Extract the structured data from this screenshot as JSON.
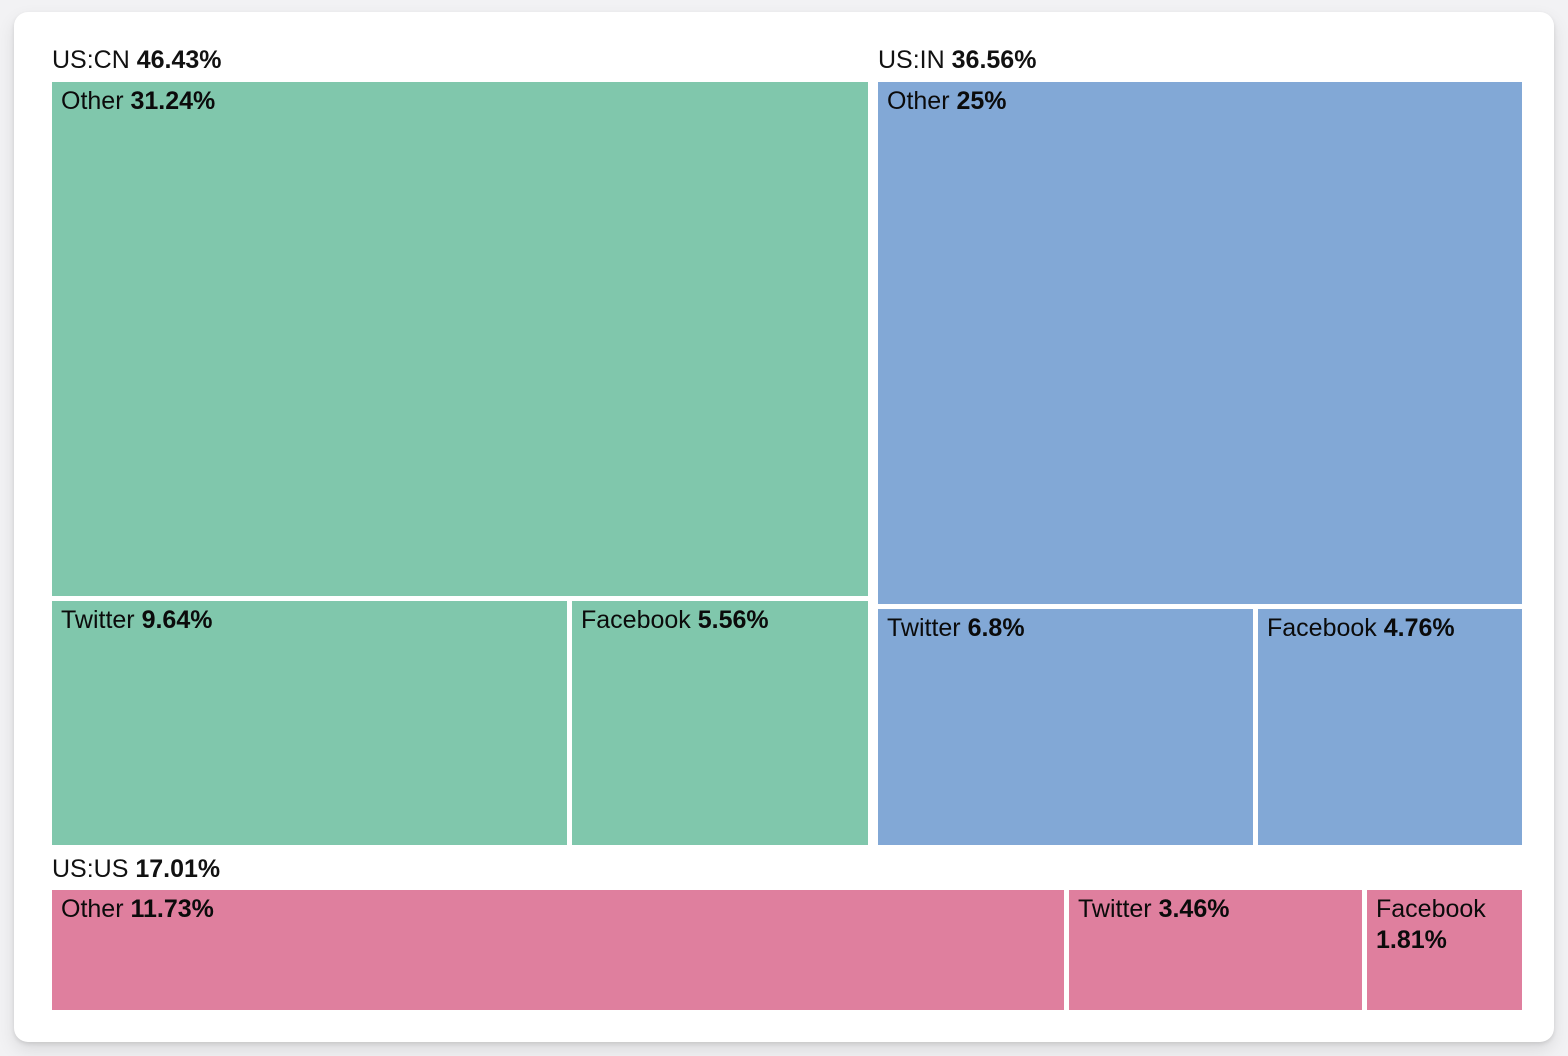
{
  "page": {
    "background_color": "#F2F2F4",
    "card_color": "#FFFFFF",
    "text_color": "#111111"
  },
  "chart_data": {
    "type": "treemap",
    "unit": "%",
    "legend_position": "none",
    "title": "",
    "groups": [
      {
        "label": "US:CN",
        "value": 46.43,
        "value_label": "46.43%",
        "color": "#80C7AC",
        "children": [
          {
            "label": "Other",
            "value": 31.24,
            "value_label": "31.24%"
          },
          {
            "label": "Twitter",
            "value": 9.64,
            "value_label": "9.64%"
          },
          {
            "label": "Facebook",
            "value": 5.56,
            "value_label": "5.56%"
          }
        ]
      },
      {
        "label": "US:IN",
        "value": 36.56,
        "value_label": "36.56%",
        "color": "#82A8D6",
        "children": [
          {
            "label": "Other",
            "value": 25,
            "value_label": "25%"
          },
          {
            "label": "Twitter",
            "value": 6.8,
            "value_label": "6.8%"
          },
          {
            "label": "Facebook",
            "value": 4.76,
            "value_label": "4.76%"
          }
        ]
      },
      {
        "label": "US:US",
        "value": 17.01,
        "value_label": "17.01%",
        "color": "#DF7F9E",
        "children": [
          {
            "label": "Other",
            "value": 11.73,
            "value_label": "11.73%"
          },
          {
            "label": "Twitter",
            "value": 3.46,
            "value_label": "3.46%"
          },
          {
            "label": "Facebook",
            "value": 1.81,
            "value_label": "1.81%"
          }
        ]
      }
    ]
  }
}
